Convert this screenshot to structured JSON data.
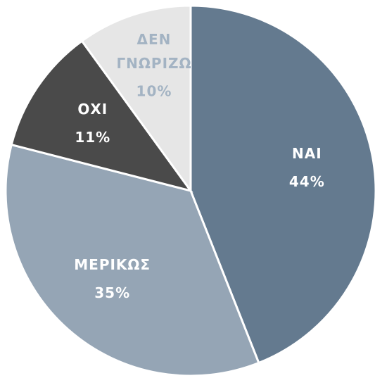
{
  "chart_data": {
    "type": "pie",
    "categories": [
      "ΝΑΙ",
      "ΜΕΡΙΚΩΣ",
      "ΟΧΙ",
      "ΔΕΝ ΓΝΩΡΙΖΩ"
    ],
    "values": [
      44,
      35,
      11,
      10
    ],
    "value_labels": [
      "44%",
      "35%",
      "11%",
      "10%"
    ],
    "colors": [
      "#647a8f",
      "#95a5b5",
      "#4a4a4a",
      "#e6e6e6"
    ],
    "label_colors": [
      "#ffffff",
      "#ffffff",
      "#ffffff",
      "#a3b3c3"
    ]
  }
}
